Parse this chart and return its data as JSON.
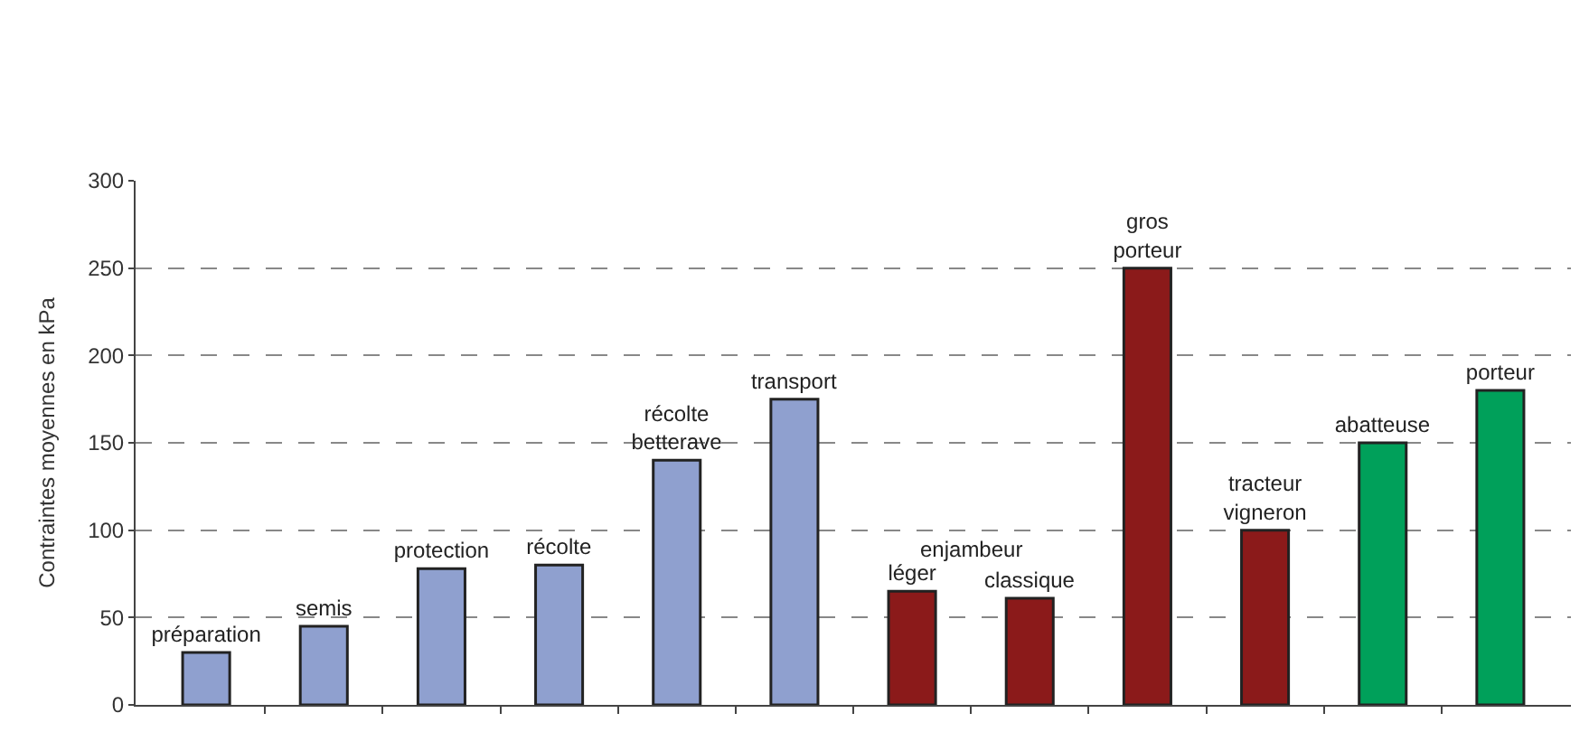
{
  "chart_data": {
    "type": "bar",
    "ylabel": "Contraintes moyennes en kPa",
    "categories": [
      "préparation",
      "semis",
      "protection",
      "récolte",
      "récolte\nbetterave",
      "transport",
      "léger",
      "classique",
      "gros\nporteur",
      "tracteur\nvigneron",
      "abatteuse",
      "porteur"
    ],
    "values": [
      30,
      45,
      78,
      80,
      140,
      175,
      65,
      61,
      250,
      100,
      150,
      180
    ],
    "colors": [
      "#8fa0cf",
      "#8fa0cf",
      "#8fa0cf",
      "#8fa0cf",
      "#8fa0cf",
      "#8fa0cf",
      "#8b1a1a",
      "#8b1a1a",
      "#8b1a1a",
      "#8b1a1a",
      "#00a05a",
      "#00a05a"
    ],
    "ylim": [
      0,
      300
    ],
    "yticks": [
      0,
      50,
      100,
      150,
      200,
      250,
      300
    ],
    "grid": "y",
    "tick_labels": "y",
    "annotations": [
      "enjambeur"
    ]
  }
}
